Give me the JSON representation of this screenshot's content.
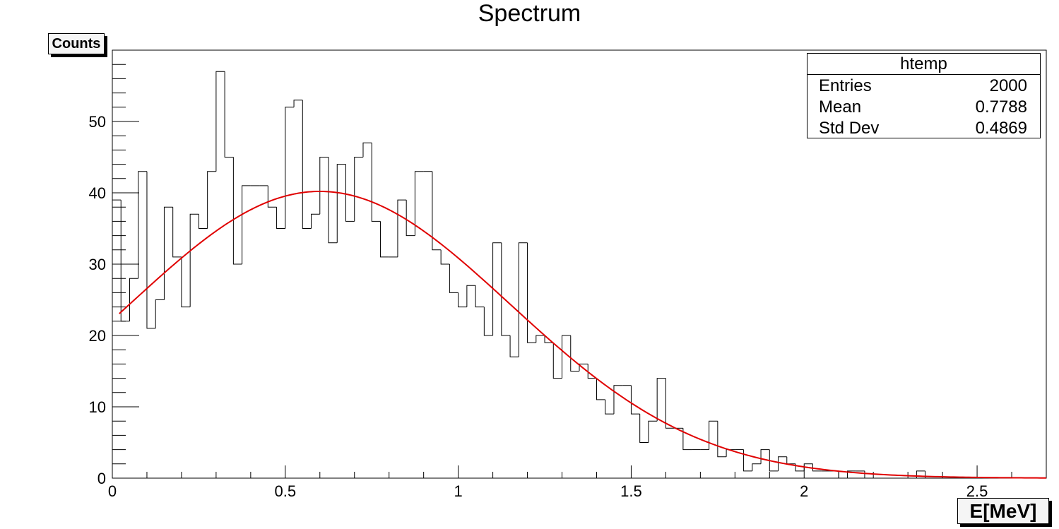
{
  "chart_data": {
    "type": "histogram",
    "title": "Spectrum",
    "xlabel": "E[MeV]",
    "ylabel": "Counts",
    "xlim": [
      0,
      2.7
    ],
    "ylim": [
      0,
      60
    ],
    "bin_width": 0.025,
    "x_ticks": [
      "0",
      "0.5",
      "1",
      "1.5",
      "2",
      "2.5"
    ],
    "y_ticks": [
      "0",
      "10",
      "20",
      "30",
      "40",
      "50"
    ],
    "counts": [
      39,
      22,
      28,
      43,
      21,
      25,
      38,
      31,
      24,
      37,
      35,
      43,
      57,
      45,
      30,
      41,
      41,
      41,
      38,
      35,
      52,
      53,
      35,
      37,
      45,
      33,
      44,
      36,
      45,
      47,
      36,
      31,
      31,
      39,
      34,
      43,
      43,
      32,
      30,
      26,
      24,
      27,
      24,
      20,
      33,
      20,
      17,
      33,
      19,
      20,
      19,
      14,
      20,
      15,
      16,
      14,
      11,
      9,
      13,
      13,
      9,
      5,
      8,
      14,
      7,
      7,
      4,
      4,
      4,
      8,
      3,
      4,
      4,
      1,
      2,
      4,
      1,
      3,
      2,
      1,
      2,
      1,
      1,
      1,
      0,
      1,
      1,
      0,
      0,
      0,
      0,
      0,
      0,
      1,
      0,
      0,
      0,
      0,
      0,
      0,
      0,
      0,
      0,
      0,
      0,
      0,
      0,
      0
    ],
    "fit": {
      "type": "gaussian",
      "color": "#e00000",
      "constant": 40.2,
      "mean": 0.6,
      "sigma": 0.55,
      "x_range": [
        0.02,
        2.7
      ]
    },
    "histogram_color": "#000000",
    "grid": false,
    "stats_box": {
      "name": "htemp",
      "entries": {
        "label": "Entries",
        "value": "2000"
      },
      "mean": {
        "label": "Mean",
        "value": "0.7788"
      },
      "stddev": {
        "label": "Std Dev",
        "value": "0.4869"
      }
    }
  }
}
